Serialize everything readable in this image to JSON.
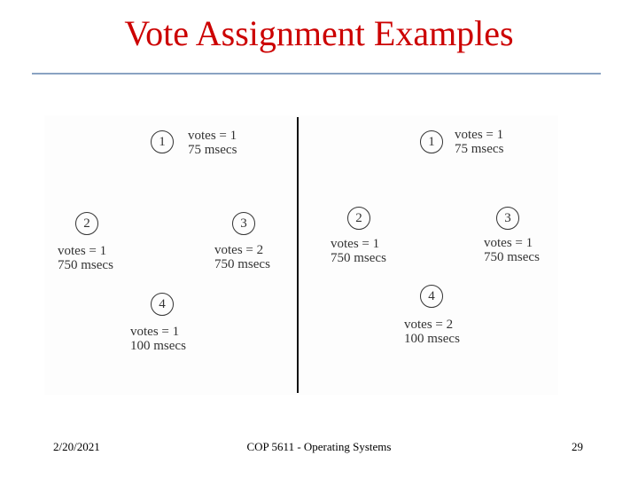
{
  "title": "Vote Assignment Examples",
  "left": {
    "nodes": [
      {
        "id": "1",
        "votes": "votes = 1",
        "time": "75 msecs"
      },
      {
        "id": "2",
        "votes": "votes = 1",
        "time": "750 msecs"
      },
      {
        "id": "3",
        "votes": "votes = 2",
        "time": "750 msecs"
      },
      {
        "id": "4",
        "votes": "votes = 1",
        "time": "100 msecs"
      }
    ]
  },
  "right": {
    "nodes": [
      {
        "id": "1",
        "votes": "votes = 1",
        "time": "75 msecs"
      },
      {
        "id": "2",
        "votes": "votes = 1",
        "time": "750 msecs"
      },
      {
        "id": "3",
        "votes": "votes = 1",
        "time": "750 msecs"
      },
      {
        "id": "4",
        "votes": "votes = 2",
        "time": "100 msecs"
      }
    ]
  },
  "footer": {
    "date": "2/20/2021",
    "course": "COP 5611 - Operating Systems",
    "page": "29"
  }
}
